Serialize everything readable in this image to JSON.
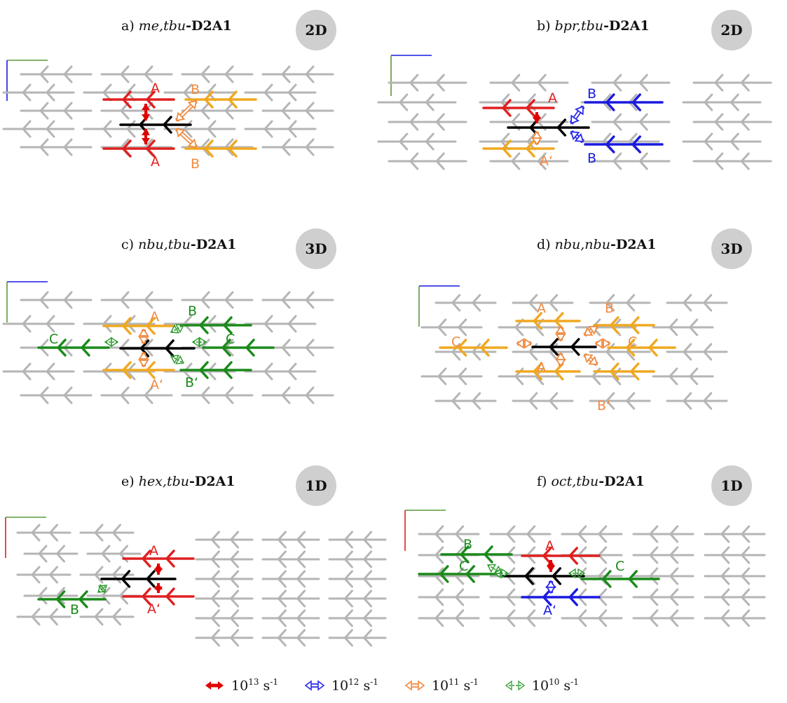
{
  "panels": [
    {
      "id": "a",
      "prefix": "a) ",
      "sub": "me,tbu",
      "mol": "-D2A1",
      "dim": "2D",
      "labels": [
        "A",
        "A",
        "B",
        "B"
      ]
    },
    {
      "id": "b",
      "prefix": "b) ",
      "sub": "bpr,tbu",
      "mol": "-D2A1",
      "dim": "2D",
      "labels": [
        "A",
        "A‘",
        "B",
        "B"
      ]
    },
    {
      "id": "c",
      "prefix": "c) ",
      "sub": "nbu,tbu",
      "mol": "-D2A1",
      "dim": "3D",
      "labels": [
        "A",
        "A‘",
        "B",
        "B‘",
        "C",
        "C"
      ]
    },
    {
      "id": "d",
      "prefix": "d) ",
      "sub": "nbu,nbu",
      "mol": "-D2A1",
      "dim": "3D",
      "labels": [
        "A",
        "A",
        "B",
        "B‘",
        "C",
        "C"
      ]
    },
    {
      "id": "e",
      "prefix": "e) ",
      "sub": "hex,tbu",
      "mol": "-D2A1",
      "dim": "1D",
      "labels": [
        "A",
        "A‘",
        "B"
      ]
    },
    {
      "id": "f",
      "prefix": "f) ",
      "sub": "oct,tbu",
      "mol": "-D2A1",
      "dim": "1D",
      "labels": [
        "A",
        "A‘",
        "B",
        "C",
        "C"
      ]
    }
  ],
  "legend": [
    {
      "base": "10",
      "exp": "13",
      "unit": " s",
      "unitexp": "-1",
      "color": "#e00000",
      "style": "solid"
    },
    {
      "base": "10",
      "exp": "12",
      "unit": " s",
      "unitexp": "-1",
      "color": "#2a2aee",
      "style": "double"
    },
    {
      "base": "10",
      "exp": "11",
      "unit": " s",
      "unitexp": "-1",
      "color": "#f08a40",
      "style": "double"
    },
    {
      "base": "10",
      "exp": "10",
      "unit": " s",
      "unitexp": "-1",
      "color": "#2a9a2a",
      "style": "dashed"
    }
  ],
  "colors": {
    "neighbor_A": "#e02020",
    "neighbor_B_orange": "#f0a820",
    "neighbor_blue": "#1a1ae0",
    "neighbor_green": "#1a8a1a",
    "reference": "#000000",
    "lattice": "#b5b5b5"
  }
}
